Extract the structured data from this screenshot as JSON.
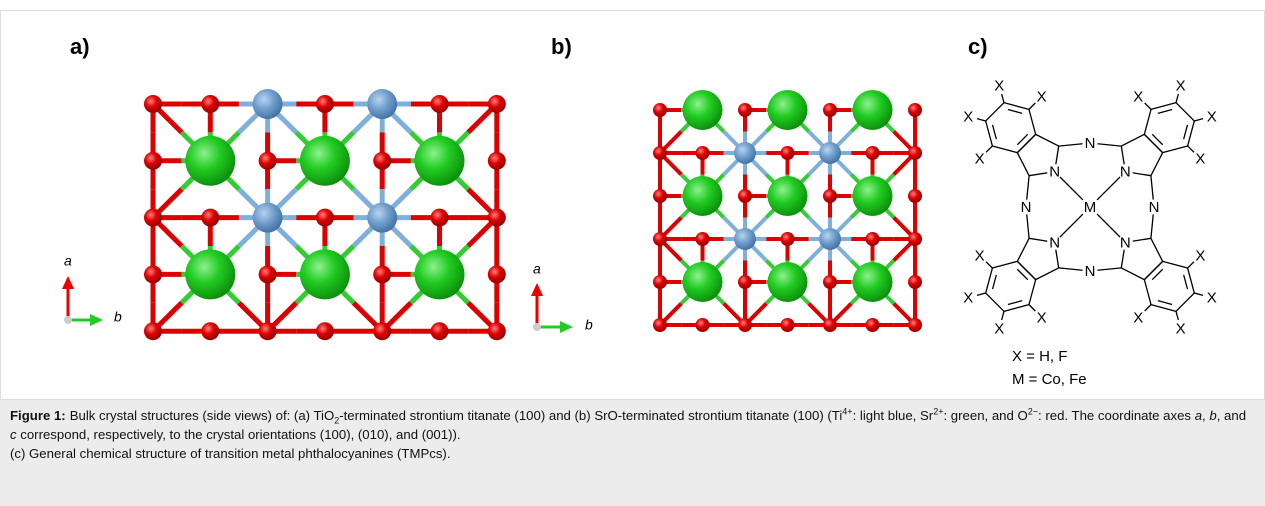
{
  "figure": {
    "panels": [
      {
        "label": "a)",
        "axis_up": "a",
        "axis_right": "b"
      },
      {
        "label": "b)",
        "axis_up": "a",
        "axis_right": "b"
      },
      {
        "label": "c)",
        "substituent": "X",
        "nitrogen": "N",
        "metal": "M",
        "legend": [
          "X = H, F",
          "M = Co, Fe"
        ]
      }
    ]
  },
  "caption": {
    "label": "Figure 1:",
    "runs": [
      {
        "text": "Bulk crystal structures (side views) of: (a) TiO"
      },
      {
        "text": "2",
        "style": "sub"
      },
      {
        "text": "-terminated strontium titanate (100) and (b) SrO-terminated strontium titanate (100) (Ti"
      },
      {
        "text": "4+",
        "style": "sup"
      },
      {
        "text": ": light blue, Sr"
      },
      {
        "text": "2+",
        "style": "sup"
      },
      {
        "text": ": green, and O"
      },
      {
        "text": "2−",
        "style": "sup"
      },
      {
        "text": ": red. The coordinate axes "
      },
      {
        "text": "a",
        "style": "i"
      },
      {
        "text": ", "
      },
      {
        "text": "b",
        "style": "i"
      },
      {
        "text": ", and "
      },
      {
        "text": "c",
        "style": "i"
      },
      {
        "text": " correspond, respectively, to the crystal orientations (100), (010), and (001))."
      }
    ],
    "note": "(c) General chemical structure of transition metal phthalocyanines (TMPcs)."
  }
}
